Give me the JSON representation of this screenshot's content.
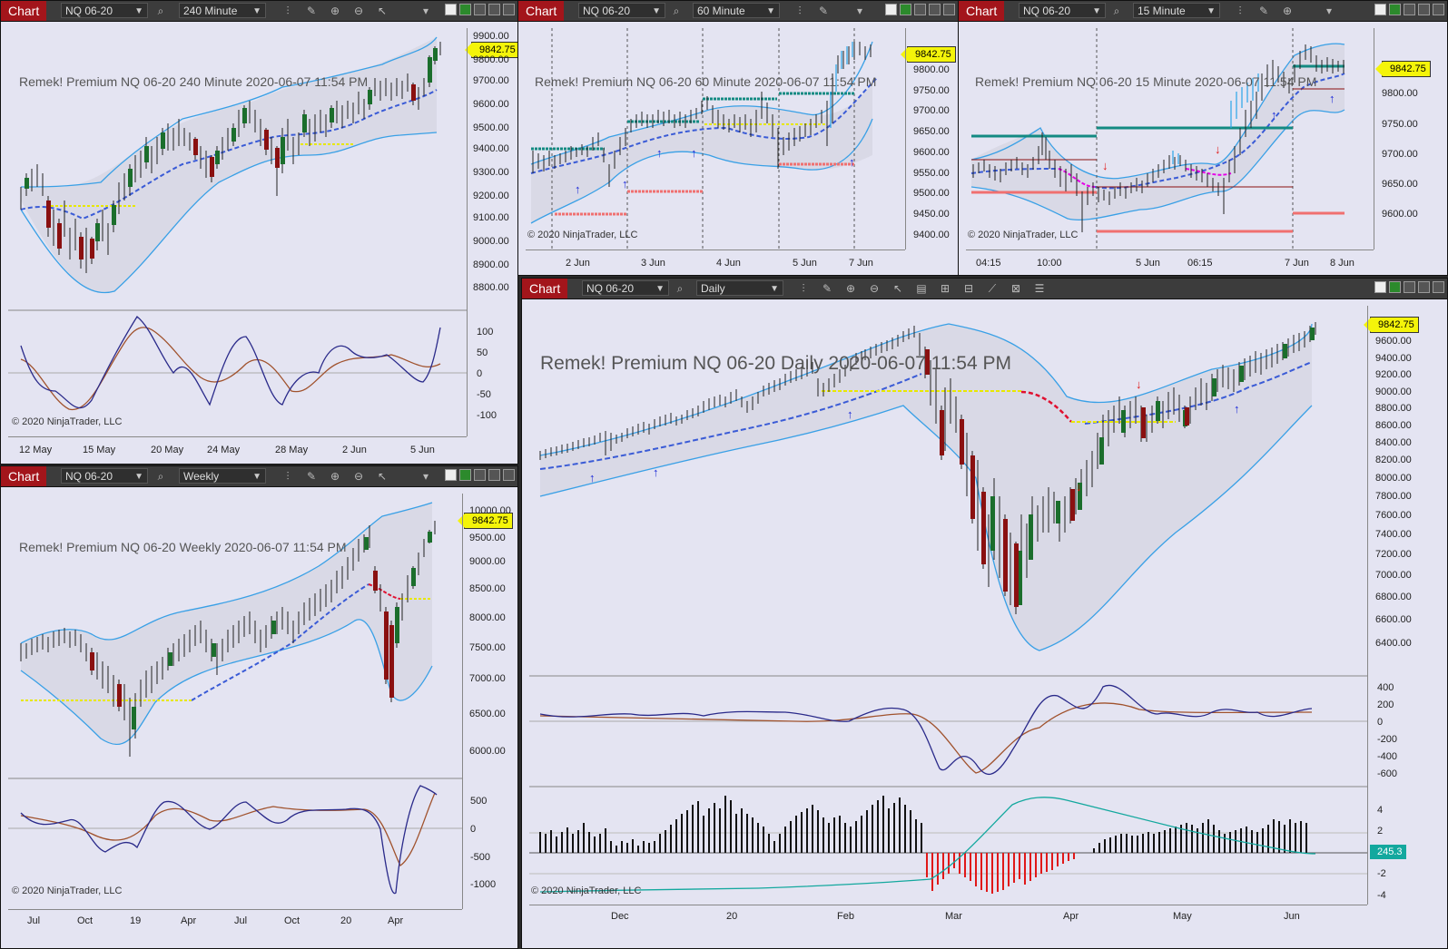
{
  "app": {
    "chart_tab": "Chart",
    "instrument": "NQ 06-20"
  },
  "windows": {
    "w240": {
      "interval": "240 Minute",
      "watermark": "Remek!  Premium  NQ 06-20  240 Minute  2020-06-07 11:54 PM",
      "price": "9842.75",
      "copyright": "© 2020 NinjaTrader, LLC",
      "yticks": [
        "9900.00",
        "9800.00",
        "9700.00",
        "9600.00",
        "9500.00",
        "9400.00",
        "9300.00",
        "9200.00",
        "9100.00",
        "9000.00",
        "8900.00",
        "8800.00"
      ],
      "osc_ticks": [
        "100",
        "50",
        "0",
        "-50",
        "-100"
      ],
      "xticks": [
        "12 May",
        "15 May",
        "20 May",
        "24 May",
        "28 May",
        "2 Jun",
        "5 Jun"
      ]
    },
    "w60": {
      "interval": "60 Minute",
      "watermark": "Remek!  Premium  NQ 06-20  60 Minute  2020-06-07 11:54 PM",
      "price": "9842.75",
      "copyright": "© 2020 NinjaTrader, LLC",
      "yticks": [
        "9800.00",
        "9750.00",
        "9700.00",
        "9650.00",
        "9600.00",
        "9550.00",
        "9500.00",
        "9450.00",
        "9400.00"
      ],
      "xticks": [
        "2 Jun",
        "3 Jun",
        "4 Jun",
        "5 Jun",
        "7 Jun"
      ]
    },
    "w15": {
      "interval": "15 Minute",
      "watermark": "Remek!  Premium  NQ 06-20  15 Minute  2020-06-07 11:54 PM",
      "price": "9842.75",
      "copyright": "© 2020 NinjaTrader, LLC",
      "yticks": [
        "9800.00",
        "9750.00",
        "9700.00",
        "9650.00",
        "9600.00"
      ],
      "xticks": [
        "04:15",
        "10:00",
        "5 Jun",
        "06:15",
        "7 Jun",
        "8 Jun"
      ]
    },
    "wWeekly": {
      "interval": "Weekly",
      "watermark": "Remek!  Premium  NQ 06-20  Weekly  2020-06-07 11:54 PM",
      "price": "9842.75",
      "copyright": "© 2020 NinjaTrader, LLC",
      "yticks": [
        "10000.00",
        "9500.00",
        "9000.00",
        "8500.00",
        "8000.00",
        "7500.00",
        "7000.00",
        "6500.00",
        "6000.00"
      ],
      "osc_ticks": [
        "500",
        "0",
        "-500",
        "-1000"
      ],
      "xticks": [
        "Jul",
        "Oct",
        "19",
        "Apr",
        "Jul",
        "Oct",
        "20",
        "Apr"
      ]
    },
    "wDaily": {
      "interval": "Daily",
      "watermark": "Remek!  Premium  NQ 06-20  Daily  2020-06-07 11:54 PM",
      "price": "9842.75",
      "hist_value": "245.3",
      "copyright": "© 2020 NinjaTrader, LLC",
      "yticks": [
        "9600.00",
        "9400.00",
        "9200.00",
        "9000.00",
        "8800.00",
        "8600.00",
        "8400.00",
        "8200.00",
        "8000.00",
        "7800.00",
        "7600.00",
        "7400.00",
        "7200.00",
        "7000.00",
        "6800.00",
        "6600.00",
        "6400.00"
      ],
      "osc_ticks": [
        "400",
        "200",
        "0",
        "-200",
        "-400",
        "-600"
      ],
      "hist_ticks": [
        "4",
        "2",
        "-2",
        "-4"
      ],
      "xticks": [
        "Dec",
        "20",
        "Feb",
        "Mar",
        "Apr",
        "May",
        "Jun"
      ]
    }
  },
  "colors": {
    "chart_bg": "#e4e4f2",
    "tab_red": "#a3151b",
    "price_tag": "#f4f40a",
    "band": "#39a0e6",
    "ma": "#3a5bd6",
    "teal": "#13a89e"
  }
}
